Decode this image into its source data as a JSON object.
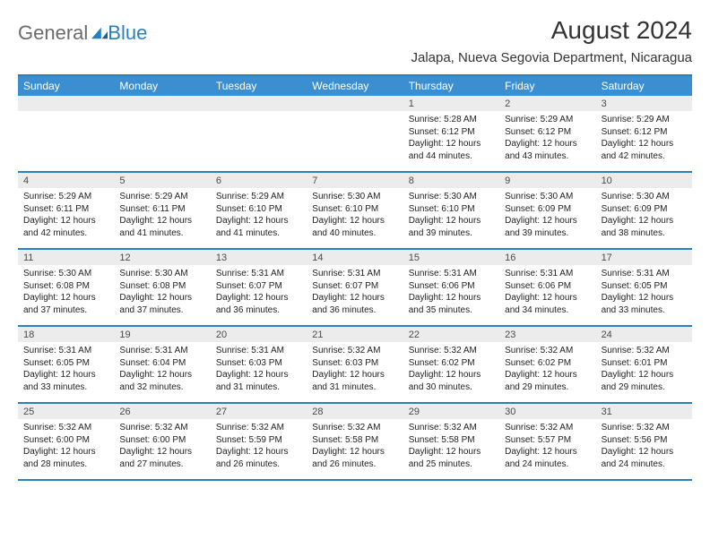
{
  "colors": {
    "accent": "#2a7fbf",
    "header_bg": "#3b8fd0",
    "band_bg": "#ececec",
    "text": "#212121",
    "muted": "#6b6b6b"
  },
  "logo": {
    "general": "General",
    "blue": "Blue"
  },
  "title": {
    "month": "August 2024",
    "location": "Jalapa, Nueva Segovia Department, Nicaragua"
  },
  "dayHeaders": [
    "Sunday",
    "Monday",
    "Tuesday",
    "Wednesday",
    "Thursday",
    "Friday",
    "Saturday"
  ],
  "weeks": [
    [
      {
        "num": "",
        "sunrise": "",
        "sunset": "",
        "day1": "",
        "day2": ""
      },
      {
        "num": "",
        "sunrise": "",
        "sunset": "",
        "day1": "",
        "day2": ""
      },
      {
        "num": "",
        "sunrise": "",
        "sunset": "",
        "day1": "",
        "day2": ""
      },
      {
        "num": "",
        "sunrise": "",
        "sunset": "",
        "day1": "",
        "day2": ""
      },
      {
        "num": "1",
        "sunrise": "Sunrise: 5:28 AM",
        "sunset": "Sunset: 6:12 PM",
        "day1": "Daylight: 12 hours",
        "day2": "and 44 minutes."
      },
      {
        "num": "2",
        "sunrise": "Sunrise: 5:29 AM",
        "sunset": "Sunset: 6:12 PM",
        "day1": "Daylight: 12 hours",
        "day2": "and 43 minutes."
      },
      {
        "num": "3",
        "sunrise": "Sunrise: 5:29 AM",
        "sunset": "Sunset: 6:12 PM",
        "day1": "Daylight: 12 hours",
        "day2": "and 42 minutes."
      }
    ],
    [
      {
        "num": "4",
        "sunrise": "Sunrise: 5:29 AM",
        "sunset": "Sunset: 6:11 PM",
        "day1": "Daylight: 12 hours",
        "day2": "and 42 minutes."
      },
      {
        "num": "5",
        "sunrise": "Sunrise: 5:29 AM",
        "sunset": "Sunset: 6:11 PM",
        "day1": "Daylight: 12 hours",
        "day2": "and 41 minutes."
      },
      {
        "num": "6",
        "sunrise": "Sunrise: 5:29 AM",
        "sunset": "Sunset: 6:10 PM",
        "day1": "Daylight: 12 hours",
        "day2": "and 41 minutes."
      },
      {
        "num": "7",
        "sunrise": "Sunrise: 5:30 AM",
        "sunset": "Sunset: 6:10 PM",
        "day1": "Daylight: 12 hours",
        "day2": "and 40 minutes."
      },
      {
        "num": "8",
        "sunrise": "Sunrise: 5:30 AM",
        "sunset": "Sunset: 6:10 PM",
        "day1": "Daylight: 12 hours",
        "day2": "and 39 minutes."
      },
      {
        "num": "9",
        "sunrise": "Sunrise: 5:30 AM",
        "sunset": "Sunset: 6:09 PM",
        "day1": "Daylight: 12 hours",
        "day2": "and 39 minutes."
      },
      {
        "num": "10",
        "sunrise": "Sunrise: 5:30 AM",
        "sunset": "Sunset: 6:09 PM",
        "day1": "Daylight: 12 hours",
        "day2": "and 38 minutes."
      }
    ],
    [
      {
        "num": "11",
        "sunrise": "Sunrise: 5:30 AM",
        "sunset": "Sunset: 6:08 PM",
        "day1": "Daylight: 12 hours",
        "day2": "and 37 minutes."
      },
      {
        "num": "12",
        "sunrise": "Sunrise: 5:30 AM",
        "sunset": "Sunset: 6:08 PM",
        "day1": "Daylight: 12 hours",
        "day2": "and 37 minutes."
      },
      {
        "num": "13",
        "sunrise": "Sunrise: 5:31 AM",
        "sunset": "Sunset: 6:07 PM",
        "day1": "Daylight: 12 hours",
        "day2": "and 36 minutes."
      },
      {
        "num": "14",
        "sunrise": "Sunrise: 5:31 AM",
        "sunset": "Sunset: 6:07 PM",
        "day1": "Daylight: 12 hours",
        "day2": "and 36 minutes."
      },
      {
        "num": "15",
        "sunrise": "Sunrise: 5:31 AM",
        "sunset": "Sunset: 6:06 PM",
        "day1": "Daylight: 12 hours",
        "day2": "and 35 minutes."
      },
      {
        "num": "16",
        "sunrise": "Sunrise: 5:31 AM",
        "sunset": "Sunset: 6:06 PM",
        "day1": "Daylight: 12 hours",
        "day2": "and 34 minutes."
      },
      {
        "num": "17",
        "sunrise": "Sunrise: 5:31 AM",
        "sunset": "Sunset: 6:05 PM",
        "day1": "Daylight: 12 hours",
        "day2": "and 33 minutes."
      }
    ],
    [
      {
        "num": "18",
        "sunrise": "Sunrise: 5:31 AM",
        "sunset": "Sunset: 6:05 PM",
        "day1": "Daylight: 12 hours",
        "day2": "and 33 minutes."
      },
      {
        "num": "19",
        "sunrise": "Sunrise: 5:31 AM",
        "sunset": "Sunset: 6:04 PM",
        "day1": "Daylight: 12 hours",
        "day2": "and 32 minutes."
      },
      {
        "num": "20",
        "sunrise": "Sunrise: 5:31 AM",
        "sunset": "Sunset: 6:03 PM",
        "day1": "Daylight: 12 hours",
        "day2": "and 31 minutes."
      },
      {
        "num": "21",
        "sunrise": "Sunrise: 5:32 AM",
        "sunset": "Sunset: 6:03 PM",
        "day1": "Daylight: 12 hours",
        "day2": "and 31 minutes."
      },
      {
        "num": "22",
        "sunrise": "Sunrise: 5:32 AM",
        "sunset": "Sunset: 6:02 PM",
        "day1": "Daylight: 12 hours",
        "day2": "and 30 minutes."
      },
      {
        "num": "23",
        "sunrise": "Sunrise: 5:32 AM",
        "sunset": "Sunset: 6:02 PM",
        "day1": "Daylight: 12 hours",
        "day2": "and 29 minutes."
      },
      {
        "num": "24",
        "sunrise": "Sunrise: 5:32 AM",
        "sunset": "Sunset: 6:01 PM",
        "day1": "Daylight: 12 hours",
        "day2": "and 29 minutes."
      }
    ],
    [
      {
        "num": "25",
        "sunrise": "Sunrise: 5:32 AM",
        "sunset": "Sunset: 6:00 PM",
        "day1": "Daylight: 12 hours",
        "day2": "and 28 minutes."
      },
      {
        "num": "26",
        "sunrise": "Sunrise: 5:32 AM",
        "sunset": "Sunset: 6:00 PM",
        "day1": "Daylight: 12 hours",
        "day2": "and 27 minutes."
      },
      {
        "num": "27",
        "sunrise": "Sunrise: 5:32 AM",
        "sunset": "Sunset: 5:59 PM",
        "day1": "Daylight: 12 hours",
        "day2": "and 26 minutes."
      },
      {
        "num": "28",
        "sunrise": "Sunrise: 5:32 AM",
        "sunset": "Sunset: 5:58 PM",
        "day1": "Daylight: 12 hours",
        "day2": "and 26 minutes."
      },
      {
        "num": "29",
        "sunrise": "Sunrise: 5:32 AM",
        "sunset": "Sunset: 5:58 PM",
        "day1": "Daylight: 12 hours",
        "day2": "and 25 minutes."
      },
      {
        "num": "30",
        "sunrise": "Sunrise: 5:32 AM",
        "sunset": "Sunset: 5:57 PM",
        "day1": "Daylight: 12 hours",
        "day2": "and 24 minutes."
      },
      {
        "num": "31",
        "sunrise": "Sunrise: 5:32 AM",
        "sunset": "Sunset: 5:56 PM",
        "day1": "Daylight: 12 hours",
        "day2": "and 24 minutes."
      }
    ]
  ]
}
